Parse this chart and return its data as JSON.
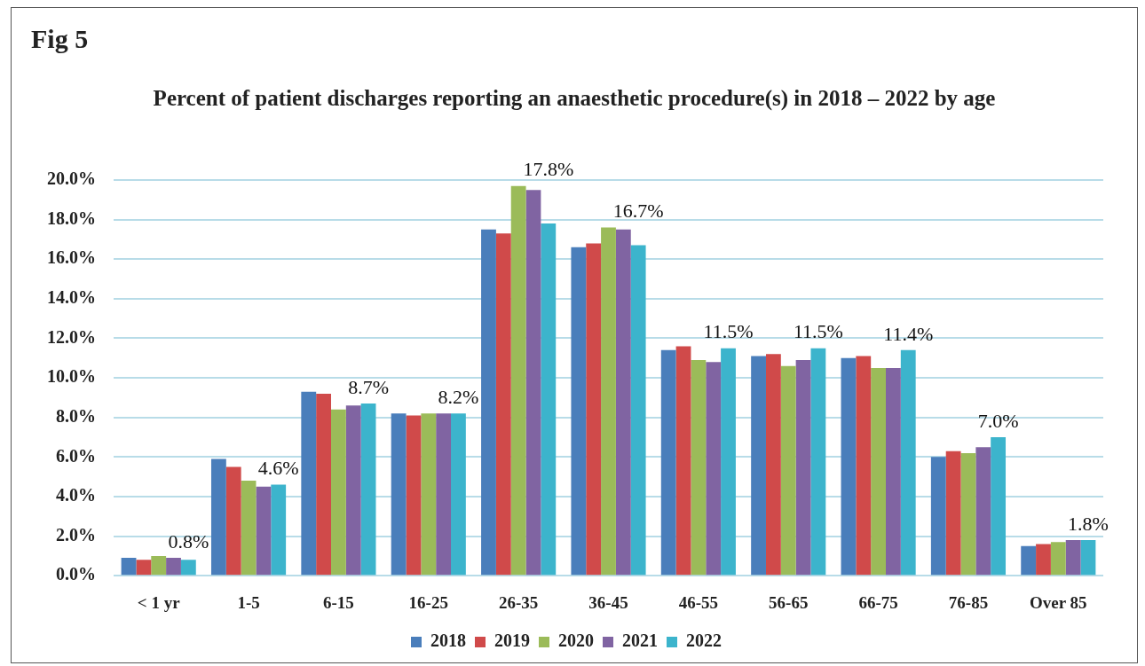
{
  "chart_data": {
    "type": "bar",
    "title": "Fig 5",
    "subtitle": "Percent of patient discharges reporting an anaesthetic procedure(s) in 2018 – 2022 by age",
    "categories": [
      "< 1 yr",
      "1-5",
      "6-15",
      "16-25",
      "26-35",
      "36-45",
      "46-55",
      "56-65",
      "66-75",
      "76-85",
      "Over 85"
    ],
    "series": [
      {
        "name": "2018",
        "color": "#4a7ebb",
        "values": [
          0.9,
          5.9,
          9.3,
          8.2,
          17.5,
          16.6,
          11.4,
          11.1,
          11.0,
          6.0,
          1.5
        ]
      },
      {
        "name": "2019",
        "color": "#d04a4a",
        "values": [
          0.8,
          5.5,
          9.2,
          8.1,
          17.3,
          16.8,
          11.6,
          11.2,
          11.1,
          6.3,
          1.6
        ]
      },
      {
        "name": "2020",
        "color": "#9bbb59",
        "values": [
          1.0,
          4.8,
          8.4,
          8.2,
          19.7,
          17.6,
          10.9,
          10.6,
          10.5,
          6.2,
          1.7
        ]
      },
      {
        "name": "2021",
        "color": "#8064a2",
        "values": [
          0.9,
          4.5,
          8.6,
          8.2,
          19.5,
          17.5,
          10.8,
          10.9,
          10.5,
          6.5,
          1.8
        ]
      },
      {
        "name": "2022",
        "color": "#3cb4cc",
        "values": [
          0.8,
          4.6,
          8.7,
          8.2,
          17.8,
          16.7,
          11.5,
          11.5,
          11.4,
          7.0,
          1.8
        ],
        "value_labels": [
          "0.8%",
          "4.6%",
          "8.7%",
          "8.2%",
          "17.8%",
          "16.7%",
          "11.5%",
          "11.5%",
          "11.4%",
          "7.0%",
          "1.8%"
        ]
      }
    ],
    "ylim": [
      0,
      20
    ],
    "yticks": [
      {
        "value": 0,
        "label": "0.0%"
      },
      {
        "value": 2,
        "label": "2.0%"
      },
      {
        "value": 4,
        "label": "4.0%"
      },
      {
        "value": 6,
        "label": "6.0%"
      },
      {
        "value": 8,
        "label": "8.0%"
      },
      {
        "value": 10,
        "label": "10.0%"
      },
      {
        "value": 12,
        "label": "12.0%"
      },
      {
        "value": 14,
        "label": "14.0%"
      },
      {
        "value": 16,
        "label": "16.0%"
      },
      {
        "value": 18,
        "label": "18.0%"
      },
      {
        "value": 20,
        "label": "20.0%"
      }
    ],
    "grid": "y",
    "legend": "bottom"
  }
}
